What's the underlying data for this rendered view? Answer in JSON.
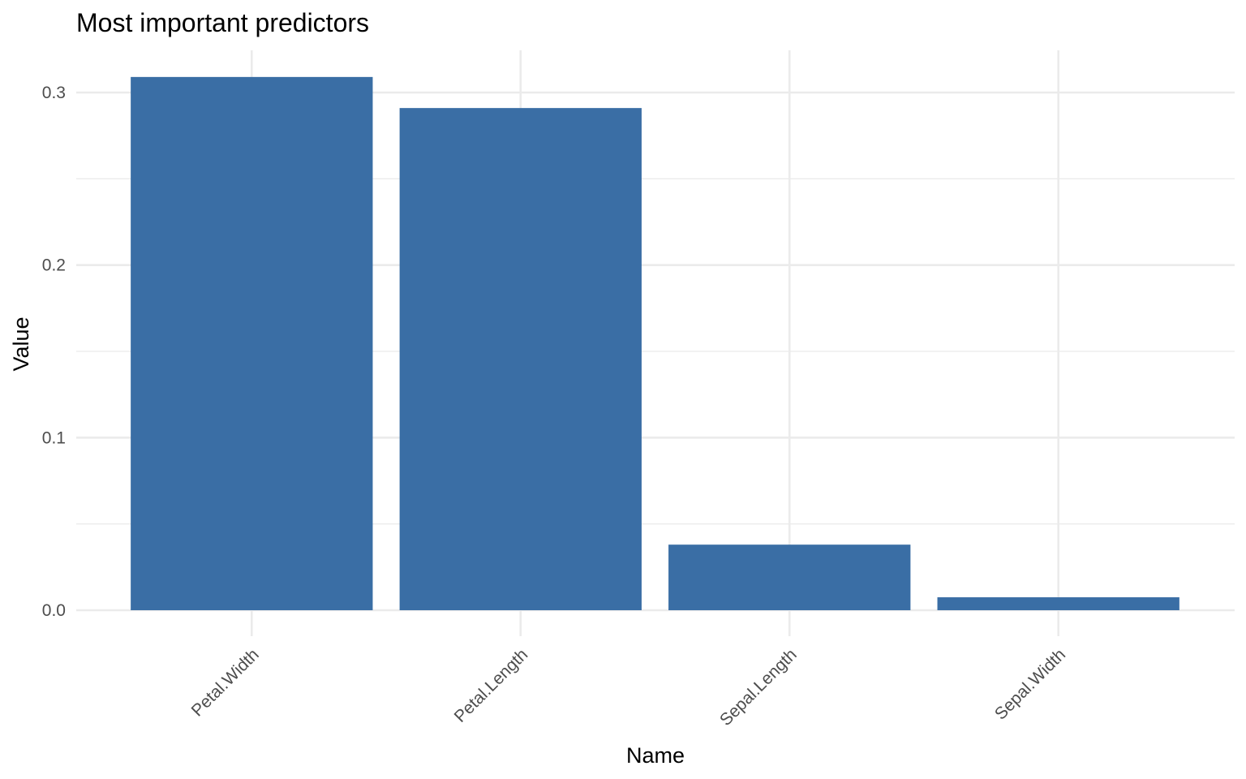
{
  "chart_data": {
    "type": "bar",
    "title": "Most important predictors",
    "xlabel": "Name",
    "ylabel": "Value",
    "categories": [
      "Petal.Width",
      "Petal.Length",
      "Sepal.Length",
      "Sepal.Width"
    ],
    "values": [
      0.309,
      0.291,
      0.038,
      0.0075
    ],
    "ylim": [
      0,
      0.325
    ],
    "yticks": [
      0.0,
      0.1,
      0.2,
      0.3
    ],
    "ytick_labels": [
      "0.0",
      "0.1",
      "0.2",
      "0.3"
    ],
    "x_tick_rotation_deg": 45,
    "grid": true,
    "legend": "none",
    "bar_color": "#3a6ea5",
    "grid_color": "#ebebeb",
    "theme": "minimal"
  }
}
